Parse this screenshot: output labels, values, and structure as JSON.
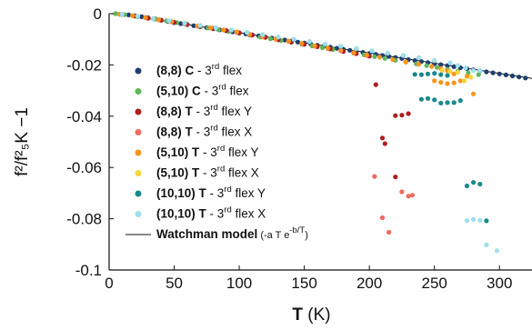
{
  "chart_data": {
    "type": "scatter",
    "xlabel": "T",
    "xlabel_unit": "(K)",
    "ylabel": "f²/f²₅K −1",
    "xlim": [
      0,
      325
    ],
    "ylim": [
      -0.1,
      0
    ],
    "x_ticks": [
      "0",
      "50",
      "100",
      "150",
      "200",
      "250",
      "300"
    ],
    "y_ticks": [
      "0",
      "-0.02",
      "-0.04",
      "-0.06",
      "-0.08",
      "-0.1"
    ],
    "grid": false,
    "legend_position": "bottom-left",
    "series": [
      {
        "name_bold": "(8,8)",
        "name_mode": "C",
        "name_rest": "3",
        "name_sup": "rd",
        "name_tail": "flex",
        "color": "#1f3f6e",
        "marker": "dot",
        "points": [
          [
            5,
            0
          ],
          [
            10,
            -0.0002
          ],
          [
            15,
            -0.0005
          ],
          [
            20,
            -0.0008
          ],
          [
            25,
            -0.0012
          ],
          [
            30,
            -0.0016
          ],
          [
            35,
            -0.002
          ],
          [
            40,
            -0.0025
          ],
          [
            45,
            -0.003
          ],
          [
            50,
            -0.0035
          ],
          [
            55,
            -0.0039
          ],
          [
            60,
            -0.0043
          ],
          [
            65,
            -0.0047
          ],
          [
            70,
            -0.0051
          ],
          [
            75,
            -0.0055
          ],
          [
            80,
            -0.0059
          ],
          [
            85,
            -0.0063
          ],
          [
            90,
            -0.0067
          ],
          [
            95,
            -0.0071
          ],
          [
            100,
            -0.0075
          ],
          [
            105,
            -0.0079
          ],
          [
            110,
            -0.0083
          ],
          [
            115,
            -0.0087
          ],
          [
            120,
            -0.0091
          ],
          [
            125,
            -0.0095
          ],
          [
            130,
            -0.0099
          ],
          [
            135,
            -0.0103
          ],
          [
            140,
            -0.0107
          ],
          [
            145,
            -0.0111
          ],
          [
            150,
            -0.0115
          ],
          [
            155,
            -0.0119
          ],
          [
            160,
            -0.0123
          ],
          [
            165,
            -0.0127
          ],
          [
            170,
            -0.0131
          ],
          [
            175,
            -0.0135
          ],
          [
            180,
            -0.0139
          ],
          [
            185,
            -0.0143
          ],
          [
            190,
            -0.0147
          ],
          [
            195,
            -0.0151
          ],
          [
            200,
            -0.0155
          ],
          [
            205,
            -0.0159
          ],
          [
            210,
            -0.0163
          ],
          [
            215,
            -0.0167
          ],
          [
            220,
            -0.0171
          ],
          [
            225,
            -0.0175
          ],
          [
            230,
            -0.0179
          ],
          [
            235,
            -0.0183
          ],
          [
            240,
            -0.0187
          ],
          [
            245,
            -0.0191
          ],
          [
            250,
            -0.0195
          ],
          [
            255,
            -0.0199
          ],
          [
            260,
            -0.0203
          ],
          [
            265,
            -0.0207
          ],
          [
            270,
            -0.0211
          ],
          [
            275,
            -0.0215
          ],
          [
            280,
            -0.0219
          ],
          [
            285,
            -0.0223
          ],
          [
            290,
            -0.0227
          ],
          [
            295,
            -0.0231
          ],
          [
            300,
            -0.0235
          ],
          [
            305,
            -0.0239
          ],
          [
            310,
            -0.0243
          ],
          [
            315,
            -0.0247
          ],
          [
            320,
            -0.0251
          ]
        ]
      },
      {
        "name_bold": "(5,10)",
        "name_mode": "C",
        "name_rest": "3",
        "name_sup": "rd",
        "name_tail": "flex",
        "color": "#5cb85c",
        "marker": "dot",
        "points": [
          [
            5,
            0
          ],
          [
            12,
            -0.0004
          ],
          [
            20,
            -0.0009
          ],
          [
            28,
            -0.0015
          ],
          [
            36,
            -0.0021
          ],
          [
            44,
            -0.0028
          ],
          [
            52,
            -0.0035
          ],
          [
            60,
            -0.0042
          ],
          [
            68,
            -0.0049
          ],
          [
            76,
            -0.0056
          ],
          [
            84,
            -0.0063
          ],
          [
            92,
            -0.007
          ],
          [
            100,
            -0.0077
          ],
          [
            108,
            -0.0084
          ],
          [
            116,
            -0.0091
          ],
          [
            124,
            -0.0098
          ],
          [
            132,
            -0.0105
          ],
          [
            140,
            -0.0112
          ],
          [
            148,
            -0.0119
          ],
          [
            156,
            -0.0126
          ],
          [
            164,
            -0.0133
          ],
          [
            172,
            -0.014
          ],
          [
            180,
            -0.0147
          ],
          [
            188,
            -0.0154
          ],
          [
            196,
            -0.0161
          ],
          [
            204,
            -0.0168
          ],
          [
            212,
            -0.0175
          ],
          [
            220,
            -0.0182
          ],
          [
            228,
            -0.0189
          ],
          [
            236,
            -0.0196
          ],
          [
            244,
            -0.0203
          ],
          [
            252,
            -0.021
          ],
          [
            260,
            -0.0217
          ],
          [
            268,
            -0.0224
          ],
          [
            276,
            -0.0231
          ],
          [
            284,
            -0.0238
          ]
        ]
      },
      {
        "name_bold": "(8,8)",
        "name_mode": "T",
        "name_rest": "3",
        "name_sup": "rd",
        "name_tail": "flex Y",
        "color": "#b01e1e",
        "marker": "dot",
        "points": [
          [
            10,
            -0.0003
          ],
          [
            20,
            -0.001
          ],
          [
            30,
            -0.0018
          ],
          [
            40,
            -0.0026
          ],
          [
            50,
            -0.0034
          ],
          [
            60,
            -0.0042
          ],
          [
            70,
            -0.005
          ],
          [
            80,
            -0.0058
          ],
          [
            90,
            -0.0066
          ],
          [
            100,
            -0.0075
          ],
          [
            110,
            -0.0084
          ],
          [
            120,
            -0.0093
          ],
          [
            130,
            -0.0102
          ],
          [
            140,
            -0.0111
          ],
          [
            150,
            -0.012
          ],
          [
            160,
            -0.0129
          ],
          [
            170,
            -0.0138
          ],
          [
            180,
            -0.0147
          ],
          [
            190,
            -0.0156
          ],
          [
            200,
            -0.0166
          ],
          [
            205,
            -0.0277
          ],
          [
            220,
            -0.0398
          ],
          [
            225,
            -0.0396
          ],
          [
            230,
            -0.039
          ],
          [
            210,
            -0.0485
          ],
          [
            212,
            -0.0507
          ],
          [
            220,
            -0.0637
          ]
        ]
      },
      {
        "name_bold": "(8,8)",
        "name_mode": "T",
        "name_rest": "3",
        "name_sup": "rd",
        "name_tail": "flex X",
        "color": "#ef6a5e",
        "marker": "dot",
        "points": [
          [
            8,
            -0.0002
          ],
          [
            18,
            -0.0008
          ],
          [
            28,
            -0.0016
          ],
          [
            38,
            -0.0024
          ],
          [
            48,
            -0.0032
          ],
          [
            58,
            -0.004
          ],
          [
            68,
            -0.0048
          ],
          [
            78,
            -0.0056
          ],
          [
            88,
            -0.0064
          ],
          [
            98,
            -0.0073
          ],
          [
            108,
            -0.0082
          ],
          [
            118,
            -0.0091
          ],
          [
            128,
            -0.01
          ],
          [
            138,
            -0.0109
          ],
          [
            148,
            -0.0118
          ],
          [
            158,
            -0.0127
          ],
          [
            168,
            -0.0136
          ],
          [
            178,
            -0.0145
          ],
          [
            188,
            -0.0154
          ],
          [
            198,
            -0.0163
          ],
          [
            204,
            -0.0635
          ],
          [
            225,
            -0.0695
          ],
          [
            230,
            -0.0712
          ],
          [
            233,
            -0.0708
          ],
          [
            210,
            -0.0796
          ],
          [
            215,
            -0.0853
          ]
        ]
      },
      {
        "name_bold": "(5,10)",
        "name_mode": "T",
        "name_rest": "3",
        "name_sup": "rd",
        "name_tail": "flex Y",
        "color": "#f7941d",
        "marker": "dot",
        "points": [
          [
            8,
            -0.0002
          ],
          [
            18,
            -0.0008
          ],
          [
            28,
            -0.0015
          ],
          [
            38,
            -0.0023
          ],
          [
            48,
            -0.0031
          ],
          [
            58,
            -0.0039
          ],
          [
            68,
            -0.0047
          ],
          [
            78,
            -0.0055
          ],
          [
            88,
            -0.0063
          ],
          [
            98,
            -0.0071
          ],
          [
            108,
            -0.008
          ],
          [
            118,
            -0.0089
          ],
          [
            128,
            -0.0098
          ],
          [
            138,
            -0.0107
          ],
          [
            148,
            -0.0116
          ],
          [
            158,
            -0.0125
          ],
          [
            168,
            -0.0134
          ],
          [
            178,
            -0.0143
          ],
          [
            188,
            -0.0152
          ],
          [
            198,
            -0.0161
          ],
          [
            208,
            -0.017
          ],
          [
            218,
            -0.0179
          ],
          [
            228,
            -0.0188
          ],
          [
            238,
            -0.0197
          ],
          [
            248,
            -0.0206
          ],
          [
            255,
            -0.0214
          ],
          [
            260,
            -0.0222
          ],
          [
            265,
            -0.0235
          ],
          [
            250,
            -0.0262
          ],
          [
            255,
            -0.0268
          ],
          [
            260,
            -0.0273
          ],
          [
            265,
            -0.027
          ],
          [
            270,
            -0.0262
          ],
          [
            275,
            -0.0244
          ],
          [
            280,
            -0.0313
          ]
        ]
      },
      {
        "name_bold": "(5,10)",
        "name_mode": "T",
        "name_rest": "3",
        "name_sup": "rd",
        "name_tail": "flex X",
        "color": "#f5d53b",
        "marker": "dot",
        "points": [
          [
            10,
            -0.0003
          ],
          [
            22,
            -0.001
          ],
          [
            34,
            -0.0019
          ],
          [
            46,
            -0.0028
          ],
          [
            58,
            -0.0037
          ],
          [
            70,
            -0.0046
          ],
          [
            82,
            -0.0055
          ],
          [
            94,
            -0.0064
          ],
          [
            106,
            -0.0073
          ],
          [
            118,
            -0.0082
          ],
          [
            130,
            -0.0091
          ],
          [
            142,
            -0.01
          ],
          [
            154,
            -0.0109
          ],
          [
            166,
            -0.0118
          ],
          [
            178,
            -0.0127
          ],
          [
            190,
            -0.0136
          ],
          [
            202,
            -0.0145
          ],
          [
            214,
            -0.0154
          ],
          [
            226,
            -0.0163
          ],
          [
            238,
            -0.0172
          ],
          [
            250,
            -0.0183
          ],
          [
            256,
            -0.0221
          ],
          [
            262,
            -0.0226
          ],
          [
            268,
            -0.0229
          ],
          [
            273,
            -0.0262
          ],
          [
            278,
            -0.0248
          ]
        ]
      },
      {
        "name_bold": "(10,10)",
        "name_mode": "T",
        "name_rest": "3",
        "name_sup": "rd",
        "name_tail": "flex Y",
        "color": "#188a8d",
        "marker": "dot",
        "points": [
          [
            10,
            -0.0003
          ],
          [
            22,
            -0.0011
          ],
          [
            34,
            -0.002
          ],
          [
            46,
            -0.0029
          ],
          [
            58,
            -0.0038
          ],
          [
            70,
            -0.0047
          ],
          [
            82,
            -0.0056
          ],
          [
            94,
            -0.0065
          ],
          [
            106,
            -0.0074
          ],
          [
            118,
            -0.0083
          ],
          [
            130,
            -0.0092
          ],
          [
            142,
            -0.0101
          ],
          [
            154,
            -0.011
          ],
          [
            166,
            -0.0119
          ],
          [
            178,
            -0.0128
          ],
          [
            190,
            -0.0137
          ],
          [
            202,
            -0.0146
          ],
          [
            214,
            -0.0155
          ],
          [
            226,
            -0.0164
          ],
          [
            235,
            -0.0237
          ],
          [
            240,
            -0.0238
          ],
          [
            245,
            -0.0235
          ],
          [
            250,
            -0.0233
          ],
          [
            255,
            -0.0238
          ],
          [
            260,
            -0.0241
          ],
          [
            240,
            -0.0334
          ],
          [
            245,
            -0.0331
          ],
          [
            250,
            -0.0336
          ],
          [
            255,
            -0.0349
          ],
          [
            260,
            -0.0347
          ],
          [
            265,
            -0.0347
          ],
          [
            270,
            -0.0339
          ],
          [
            275,
            -0.0672
          ],
          [
            280,
            -0.0658
          ],
          [
            285,
            -0.0665
          ],
          [
            290,
            -0.0808
          ]
        ]
      },
      {
        "name_bold": "(10,10)",
        "name_mode": "T",
        "name_rest": "3",
        "name_sup": "rd",
        "name_tail": "flex X",
        "color": "#9fdfef",
        "marker": "dot",
        "points": [
          [
            10,
            -0.0002
          ],
          [
            22,
            -0.001
          ],
          [
            34,
            -0.0019
          ],
          [
            46,
            -0.0028
          ],
          [
            58,
            -0.0037
          ],
          [
            70,
            -0.0046
          ],
          [
            82,
            -0.0055
          ],
          [
            94,
            -0.0064
          ],
          [
            106,
            -0.0073
          ],
          [
            118,
            -0.0082
          ],
          [
            130,
            -0.0091
          ],
          [
            142,
            -0.01
          ],
          [
            154,
            -0.0109
          ],
          [
            166,
            -0.0118
          ],
          [
            178,
            -0.0127
          ],
          [
            190,
            -0.0136
          ],
          [
            202,
            -0.0145
          ],
          [
            214,
            -0.0154
          ],
          [
            226,
            -0.0163
          ],
          [
            238,
            -0.0172
          ],
          [
            250,
            -0.0182
          ],
          [
            262,
            -0.0192
          ],
          [
            268,
            -0.0202
          ],
          [
            274,
            -0.0212
          ],
          [
            280,
            -0.0222
          ],
          [
            285,
            -0.0222
          ],
          [
            280,
            -0.0803
          ],
          [
            285,
            -0.0806
          ],
          [
            275,
            -0.0807
          ],
          [
            290,
            -0.0902
          ],
          [
            298,
            -0.0925
          ]
        ]
      }
    ],
    "model": {
      "name": "Watchman model",
      "formula_prefix": "(-a T e",
      "formula_sup": "-b/T",
      "formula_suffix": ")",
      "color": "#111111",
      "a": 7.95e-05,
      "b": 7
    }
  }
}
